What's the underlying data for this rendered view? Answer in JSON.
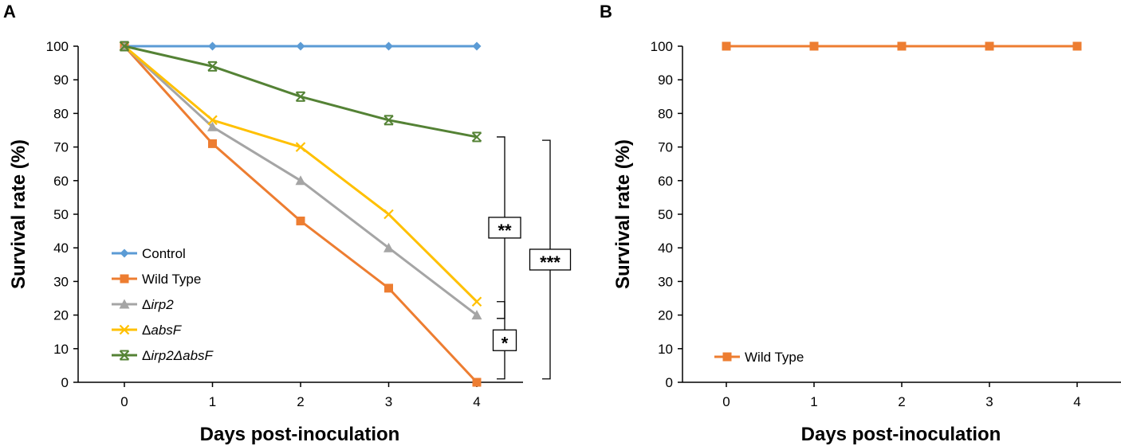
{
  "colors": {
    "control": "#5B9BD5",
    "wild_type": "#ED7D31",
    "irp2": "#A5A5A5",
    "absF": "#FFC000",
    "double": "#548235",
    "axis": "#000000"
  },
  "chart_data": [
    {
      "panel_label": "A",
      "type": "line",
      "xlabel": "Days post-inoculation",
      "ylabel": "Survival rate (%)",
      "x": [
        0,
        1,
        2,
        3,
        4
      ],
      "x_ticks": [
        "0",
        "1",
        "2",
        "3",
        "4"
      ],
      "y_ticks": [
        "0",
        "10",
        "20",
        "30",
        "40",
        "50",
        "60",
        "70",
        "80",
        "90",
        "100"
      ],
      "ylim": [
        0,
        100
      ],
      "legend_position": "bottom-left",
      "series": [
        {
          "key": "control",
          "name": "Control",
          "prefix": "",
          "marker": "diamond",
          "values": [
            100,
            100,
            100,
            100,
            100
          ]
        },
        {
          "key": "wild_type",
          "name": "Wild Type",
          "prefix": "",
          "marker": "square",
          "values": [
            100,
            71,
            48,
            28,
            0
          ]
        },
        {
          "key": "irp2",
          "name": "irp2",
          "prefix": "Δ",
          "marker": "triangle",
          "values": [
            100,
            76,
            60,
            40,
            20
          ]
        },
        {
          "key": "absF",
          "name": "absF",
          "prefix": "Δ",
          "marker": "x",
          "values": [
            100,
            78,
            70,
            50,
            24
          ]
        },
        {
          "key": "double",
          "name": "irp2ΔabsF",
          "prefix": "Δ",
          "marker": "star",
          "values": [
            100,
            94,
            85,
            78,
            73
          ]
        }
      ],
      "significance": [
        {
          "label": "**",
          "from": 73,
          "to": 19,
          "lane": 0
        },
        {
          "label": "*",
          "from": 24,
          "to": 1,
          "lane": 0
        },
        {
          "label": "***",
          "from": 72,
          "to": 1,
          "lane": 1
        }
      ]
    },
    {
      "panel_label": "B",
      "type": "line",
      "xlabel": "Days post-inoculation",
      "ylabel": "Survival rate (%)",
      "x": [
        0,
        1,
        2,
        3,
        4
      ],
      "x_ticks": [
        "0",
        "1",
        "2",
        "3",
        "4"
      ],
      "y_ticks": [
        "0",
        "10",
        "20",
        "30",
        "40",
        "50",
        "60",
        "70",
        "80",
        "90",
        "100"
      ],
      "ylim": [
        0,
        100
      ],
      "legend_position": "bottom-left",
      "series": [
        {
          "key": "wild_type",
          "name": "Wild Type",
          "prefix": "",
          "marker": "square",
          "values": [
            100,
            100,
            100,
            100,
            100
          ]
        }
      ],
      "significance": []
    }
  ]
}
